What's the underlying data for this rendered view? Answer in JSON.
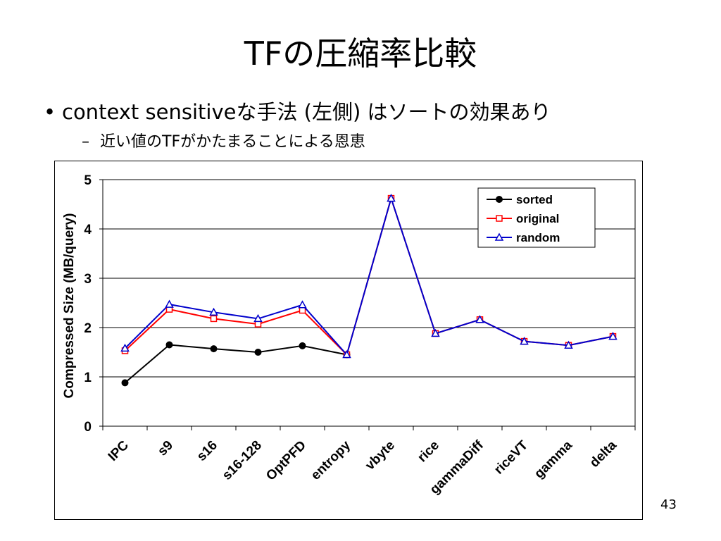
{
  "slide": {
    "title": "TFの圧縮率比較",
    "bullet": "context sensitiveな手法 (左側) はソートの効果あり",
    "bullet_marker": "•",
    "sub_bullet": "近い値のTFがかたまることによる恩恵",
    "sub_bullet_marker": "–",
    "page_number": "43"
  },
  "chart_data": {
    "type": "line",
    "title": "",
    "xlabel": "",
    "ylabel": "Compressed Size (MB/query)",
    "ylim": [
      0,
      5
    ],
    "yticks": [
      "0",
      "1",
      "2",
      "3",
      "4",
      "5"
    ],
    "grid": "horizontal",
    "legend_position": "top-right",
    "categories": [
      "IPC",
      "s9",
      "s16",
      "s16-128",
      "OptPFD",
      "entropy",
      "vbyte",
      "rice",
      "gammaDiff",
      "riceVT",
      "gamma",
      "delta"
    ],
    "series": [
      {
        "name": "sorted",
        "color": "#000000",
        "marker": "circle",
        "values": [
          0.88,
          1.65,
          1.57,
          1.5,
          1.63,
          1.45,
          null,
          null,
          null,
          null,
          null,
          null
        ]
      },
      {
        "name": "original",
        "color": "#ff0000",
        "marker": "square",
        "values": [
          1.53,
          2.37,
          2.18,
          2.07,
          2.35,
          1.45,
          4.62,
          1.88,
          2.16,
          1.72,
          1.64,
          1.82
        ]
      },
      {
        "name": "random",
        "color": "#0000cc",
        "marker": "triangle",
        "values": [
          1.58,
          2.47,
          2.31,
          2.18,
          2.46,
          1.45,
          4.62,
          1.88,
          2.16,
          1.72,
          1.64,
          1.82
        ]
      }
    ]
  }
}
